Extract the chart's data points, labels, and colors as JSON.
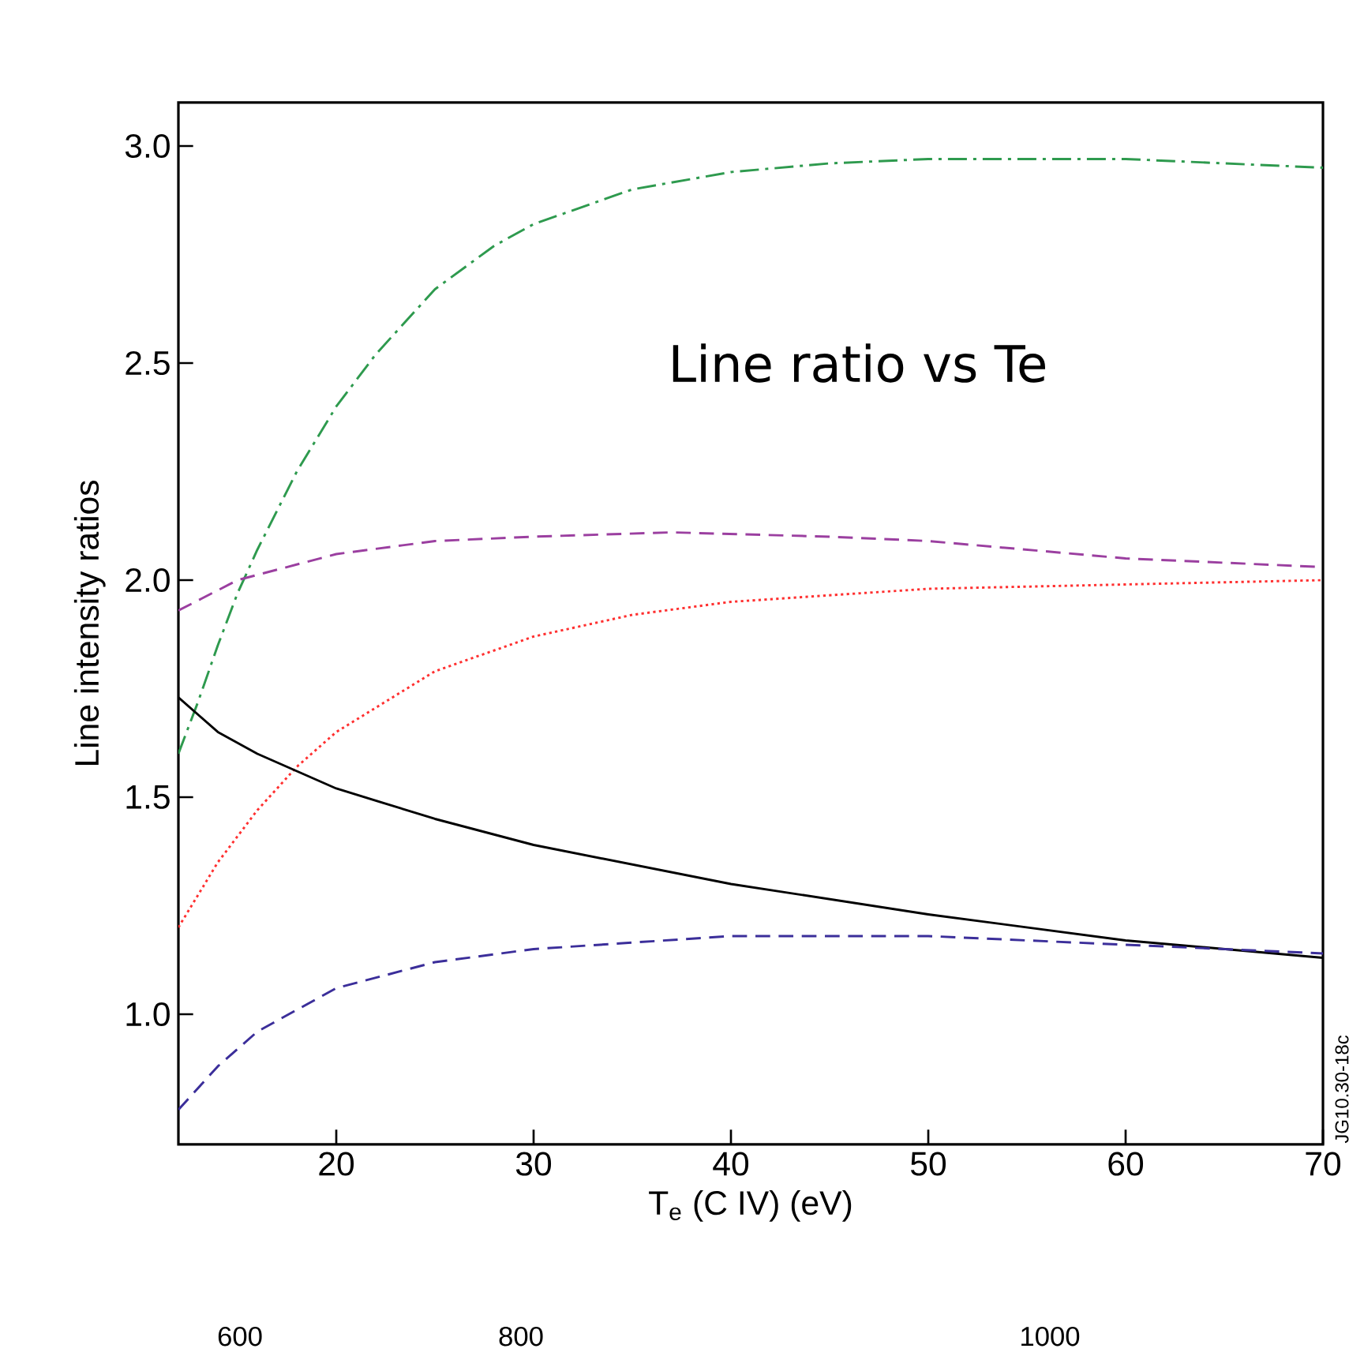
{
  "chart_data": {
    "type": "line",
    "xlabel": "T$_{e}$ (C IV) (eV)",
    "ylabel": "Line intensity ratios",
    "xlim": [
      12,
      70
    ],
    "ylim": [
      0.7,
      3.1
    ],
    "xticks": [
      20,
      30,
      40,
      50,
      60,
      70
    ],
    "yticks": [
      {
        "value": 1.0,
        "label": "1.0"
      },
      {
        "value": 1.5,
        "label": "1.5"
      },
      {
        "value": 2.0,
        "label": "2.0"
      },
      {
        "value": 2.5,
        "label": "2.5"
      },
      {
        "value": 3.0,
        "label": "3.0"
      }
    ],
    "marker": "none",
    "annotations": [
      "Line ratio vs Te",
      "JG10.30-18c",
      "600",
      "800",
      "1000"
    ],
    "series": [
      {
        "color": "#2e9a4e",
        "line_style": "dashdot",
        "x": [
          12,
          13,
          14,
          15,
          16,
          18,
          20,
          22,
          25,
          28,
          30,
          35,
          40,
          45,
          50,
          55,
          60,
          65,
          70
        ],
        "values": [
          1.6,
          1.72,
          1.85,
          1.97,
          2.07,
          2.25,
          2.4,
          2.52,
          2.67,
          2.77,
          2.82,
          2.9,
          2.94,
          2.96,
          2.97,
          2.97,
          2.97,
          2.96,
          2.95
        ]
      },
      {
        "color": "#9b3fa0",
        "line_style": "dashed",
        "x": [
          12,
          15,
          20,
          25,
          30,
          37,
          45,
          50,
          55,
          60,
          65,
          70
        ],
        "values": [
          1.93,
          2.0,
          2.06,
          2.09,
          2.1,
          2.11,
          2.1,
          2.09,
          2.07,
          2.05,
          2.04,
          2.03
        ]
      },
      {
        "color": "#ff3030",
        "line_style": "dotted",
        "x": [
          12,
          14,
          16,
          18,
          20,
          25,
          30,
          35,
          40,
          50,
          60,
          70
        ],
        "values": [
          1.2,
          1.35,
          1.47,
          1.57,
          1.65,
          1.79,
          1.87,
          1.92,
          1.95,
          1.98,
          1.99,
          2.0
        ]
      },
      {
        "color": "#000000",
        "line_style": "solid",
        "x": [
          12,
          14,
          16,
          20,
          25,
          30,
          40,
          50,
          60,
          70
        ],
        "values": [
          1.73,
          1.65,
          1.6,
          1.52,
          1.45,
          1.39,
          1.3,
          1.23,
          1.17,
          1.13
        ]
      },
      {
        "color": "#3b2e9a",
        "line_style": "dashed",
        "x": [
          12,
          14,
          16,
          20,
          25,
          30,
          40,
          50,
          60,
          70
        ],
        "values": [
          0.78,
          0.88,
          0.96,
          1.06,
          1.12,
          1.15,
          1.18,
          1.18,
          1.16,
          1.14
        ]
      }
    ]
  }
}
